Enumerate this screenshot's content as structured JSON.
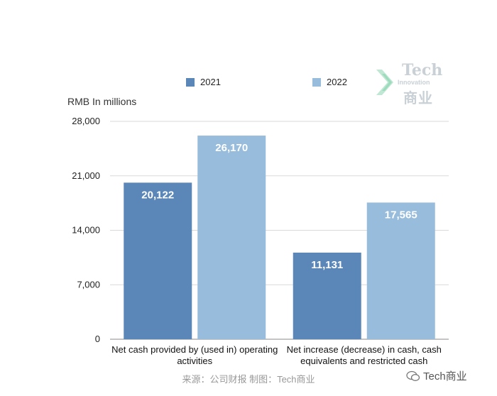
{
  "legend": [
    {
      "name": "2021",
      "color": "#5b86b8"
    },
    {
      "name": "2022",
      "color": "#98bcdc"
    }
  ],
  "unit_label": "RMB In millions",
  "logo": {
    "title": "Tech",
    "subtitle": "Innovation",
    "cn": "商业"
  },
  "source": "来源：公司财报 制图：Tech商业",
  "watermark": "Tech商业",
  "chart_data": {
    "type": "bar",
    "categories": [
      [
        "Net cash provided by (used in) operating",
        "activities"
      ],
      [
        "Net increase (decrease) in cash, cash",
        "equivalents and restricted cash"
      ]
    ],
    "series": [
      {
        "name": "2021",
        "values": [
          20122,
          11131
        ],
        "labels": [
          "20,122",
          "11,131"
        ]
      },
      {
        "name": "2022",
        "values": [
          26170,
          17565
        ],
        "labels": [
          "26,170",
          "17,565"
        ]
      }
    ],
    "ylim": [
      0,
      28000
    ],
    "yticks": [
      0,
      7000,
      14000,
      21000,
      28000
    ],
    "ytick_labels": [
      "0",
      "7,000",
      "14,000",
      "21,000",
      "28,000"
    ],
    "grid": true,
    "legend_position": "top"
  }
}
